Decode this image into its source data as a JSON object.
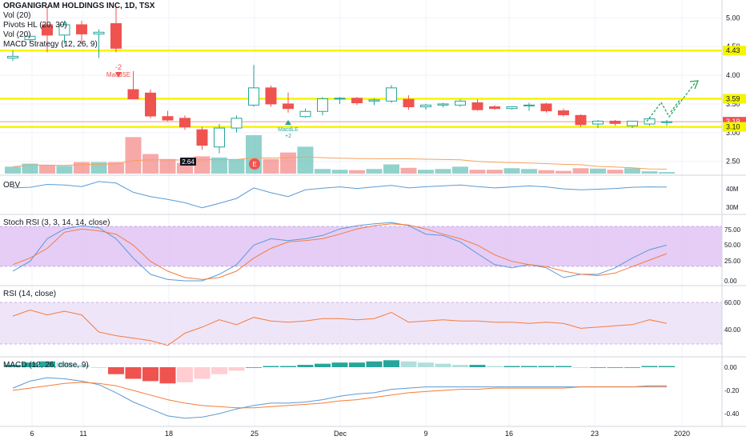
{
  "header": {
    "title": "ORGANIGRAM HOLDINGS INC, 1D, TSX",
    "overlays": [
      "Vol (20)",
      "Pivots HL (20, 30)",
      "Vol (20)",
      "MACD Strategy (12, 26, 9)"
    ]
  },
  "colors": {
    "up": "#26a69a",
    "down": "#ef5350",
    "grid": "#f0f3fa",
    "line_blue": "#5b9bd5",
    "line_orange": "#f57c3a",
    "yellow": "#f5f500",
    "band_purple": "#e1c4f5",
    "rsi_band": "#ede2f8",
    "arrow_green": "#26a65b",
    "hist_dark_green": "#26a69a",
    "hist_light_green": "#b2dfdb",
    "hist_dark_red": "#ef5350",
    "hist_light_red": "#ffcdd2"
  },
  "panes": {
    "obv": {
      "label": "OBV",
      "ticks": [
        "40M",
        "30M"
      ]
    },
    "stoch": {
      "label": "Stoch RSI (3, 3, 14, 14, close)",
      "ticks": [
        "75.00",
        "50.00",
        "25.00",
        "0.00"
      ]
    },
    "rsi": {
      "label": "RSI (14, close)",
      "ticks": [
        "60.00",
        "40.00"
      ]
    },
    "macd": {
      "label": "MACD (12, 26, close, 9)",
      "ticks": [
        "0.00",
        "-0.20",
        "-0.40"
      ]
    }
  },
  "price_axis": {
    "ticks": [
      "5.00",
      "4.50",
      "4.00",
      "3.50",
      "3.00",
      "2.50"
    ],
    "tags": [
      {
        "label": "4.43",
        "kind": "level"
      },
      {
        "label": "3.59",
        "kind": "level"
      },
      {
        "label": "3.19",
        "kind": "current"
      },
      {
        "label": "3.10",
        "kind": "level"
      }
    ]
  },
  "time_axis": [
    "6",
    "11",
    "18",
    "25",
    "Dec",
    "9",
    "16",
    "23",
    "2020"
  ],
  "annotations": {
    "sell": {
      "count": "-2",
      "name": "MacdSE"
    },
    "buy": {
      "name": "MacdLE",
      "count": "+2"
    },
    "low_label": "2.64",
    "earnings": "E"
  },
  "chart_data": {
    "type": "candlestick",
    "title": "ORGANIGRAM HOLDINGS INC, 1D, TSX",
    "y_range": [
      2.3,
      5.2
    ],
    "horizontal_levels": [
      4.43,
      3.59,
      3.1
    ],
    "last_price": 3.19,
    "candles": [
      {
        "o": 4.3,
        "h": 4.43,
        "l": 4.25,
        "c": 4.33
      },
      {
        "o": 4.62,
        "h": 4.7,
        "l": 4.55,
        "c": 4.68
      },
      {
        "o": 4.88,
        "h": 5.2,
        "l": 4.4,
        "c": 4.7
      },
      {
        "o": 4.7,
        "h": 4.95,
        "l": 4.55,
        "c": 4.88
      },
      {
        "o": 4.88,
        "h": 4.95,
        "l": 4.55,
        "c": 4.72
      },
      {
        "o": 4.72,
        "h": 4.8,
        "l": 4.3,
        "c": 4.75
      },
      {
        "o": 4.9,
        "h": 5.2,
        "l": 4.4,
        "c": 4.47
      },
      {
        "o": 3.75,
        "h": 4.07,
        "l": 3.59,
        "c": 3.59
      },
      {
        "o": 3.69,
        "h": 3.75,
        "l": 3.25,
        "c": 3.29
      },
      {
        "o": 3.28,
        "h": 3.38,
        "l": 3.2,
        "c": 3.22
      },
      {
        "o": 3.25,
        "h": 3.3,
        "l": 3.05,
        "c": 3.1
      },
      {
        "o": 3.05,
        "h": 3.1,
        "l": 2.7,
        "c": 2.78
      },
      {
        "o": 2.75,
        "h": 3.15,
        "l": 2.64,
        "c": 3.08
      },
      {
        "o": 3.08,
        "h": 3.3,
        "l": 3.0,
        "c": 3.25
      },
      {
        "o": 3.48,
        "h": 4.18,
        "l": 3.45,
        "c": 3.78
      },
      {
        "o": 3.78,
        "h": 3.82,
        "l": 3.45,
        "c": 3.5
      },
      {
        "o": 3.5,
        "h": 3.7,
        "l": 3.35,
        "c": 3.42
      },
      {
        "o": 3.28,
        "h": 3.42,
        "l": 3.26,
        "c": 3.37
      },
      {
        "o": 3.37,
        "h": 3.62,
        "l": 3.3,
        "c": 3.59
      },
      {
        "o": 3.59,
        "h": 3.62,
        "l": 3.5,
        "c": 3.6
      },
      {
        "o": 3.6,
        "h": 3.62,
        "l": 3.48,
        "c": 3.52
      },
      {
        "o": 3.55,
        "h": 3.6,
        "l": 3.48,
        "c": 3.57
      },
      {
        "o": 3.55,
        "h": 3.83,
        "l": 3.52,
        "c": 3.78
      },
      {
        "o": 3.58,
        "h": 3.65,
        "l": 3.4,
        "c": 3.45
      },
      {
        "o": 3.45,
        "h": 3.5,
        "l": 3.4,
        "c": 3.48
      },
      {
        "o": 3.48,
        "h": 3.52,
        "l": 3.44,
        "c": 3.5
      },
      {
        "o": 3.48,
        "h": 3.58,
        "l": 3.45,
        "c": 3.55
      },
      {
        "o": 3.52,
        "h": 3.58,
        "l": 3.38,
        "c": 3.4
      },
      {
        "o": 3.45,
        "h": 3.48,
        "l": 3.4,
        "c": 3.42
      },
      {
        "o": 3.42,
        "h": 3.46,
        "l": 3.4,
        "c": 3.45
      },
      {
        "o": 3.48,
        "h": 3.52,
        "l": 3.38,
        "c": 3.48
      },
      {
        "o": 3.5,
        "h": 3.52,
        "l": 3.35,
        "c": 3.38
      },
      {
        "o": 3.38,
        "h": 3.42,
        "l": 3.28,
        "c": 3.31
      },
      {
        "o": 3.3,
        "h": 3.32,
        "l": 3.1,
        "c": 3.14
      },
      {
        "o": 3.15,
        "h": 3.22,
        "l": 3.08,
        "c": 3.2
      },
      {
        "o": 3.2,
        "h": 3.22,
        "l": 3.12,
        "c": 3.16
      },
      {
        "o": 3.12,
        "h": 3.2,
        "l": 3.08,
        "c": 3.2
      },
      {
        "o": 3.15,
        "h": 3.27,
        "l": 3.12,
        "c": 3.24
      },
      {
        "o": 3.19,
        "h": 3.22,
        "l": 3.12,
        "c": 3.19
      }
    ],
    "volume": [
      0.18,
      0.26,
      0.22,
      0.2,
      0.3,
      0.3,
      0.3,
      0.95,
      0.51,
      0.38,
      0.28,
      0.45,
      0.42,
      0.38,
      1.0,
      0.38,
      0.55,
      0.7,
      0.12,
      0.1,
      0.09,
      0.12,
      0.24,
      0.15,
      0.1,
      0.12,
      0.18,
      0.1,
      0.1,
      0.14,
      0.12,
      0.09,
      0.07,
      0.14,
      0.13,
      0.1,
      0.14,
      0.06,
      0.04
    ],
    "obv": [
      40.5,
      40.8,
      42.3,
      42.0,
      41.2,
      43.8,
      43.0,
      38.2,
      36.0,
      34.5,
      32.8,
      30.2,
      32.5,
      35.0,
      40.5,
      38.0,
      36.0,
      39.5,
      40.3,
      41.0,
      40.2,
      41.0,
      41.8,
      40.5,
      41.1,
      41.5,
      42.0,
      41.2,
      40.5,
      41.0,
      41.5,
      41.0,
      40.0,
      39.5,
      39.8,
      40.2,
      40.8,
      41.0,
      40.9
    ],
    "stoch_k": [
      15,
      30,
      65,
      80,
      85,
      82,
      65,
      35,
      10,
      2,
      0,
      0,
      10,
      25,
      55,
      65,
      62,
      65,
      70,
      80,
      85,
      88,
      90,
      85,
      72,
      70,
      60,
      42,
      25,
      20,
      25,
      20,
      5,
      10,
      10,
      20,
      35,
      48,
      55
    ],
    "stoch_d": [
      25,
      35,
      50,
      75,
      80,
      77,
      72,
      55,
      30,
      15,
      5,
      2,
      5,
      15,
      35,
      50,
      60,
      62,
      65,
      72,
      80,
      85,
      88,
      86,
      80,
      72,
      65,
      55,
      40,
      30,
      25,
      22,
      15,
      10,
      8,
      12,
      22,
      32,
      42
    ],
    "rsi": [
      47,
      52,
      48,
      51,
      48,
      34,
      31,
      29,
      27,
      23,
      33,
      38,
      44,
      40,
      46,
      43,
      42,
      43,
      45,
      45,
      44,
      45,
      50,
      42,
      43,
      44,
      43,
      43,
      42,
      42,
      41,
      42,
      41,
      37,
      38,
      39,
      40,
      44,
      41
    ],
    "macd": [
      -0.18,
      -0.12,
      -0.09,
      -0.1,
      -0.12,
      -0.15,
      -0.22,
      -0.3,
      -0.36,
      -0.42,
      -0.44,
      -0.43,
      -0.4,
      -0.36,
      -0.33,
      -0.31,
      -0.31,
      -0.3,
      -0.28,
      -0.25,
      -0.23,
      -0.22,
      -0.19,
      -0.18,
      -0.17,
      -0.17,
      -0.17,
      -0.17,
      -0.17,
      -0.17,
      -0.17,
      -0.17,
      -0.17,
      -0.17,
      -0.17,
      -0.17,
      -0.17,
      -0.16,
      -0.16
    ],
    "macd_signal": [
      -0.2,
      -0.18,
      -0.16,
      -0.14,
      -0.13,
      -0.14,
      -0.16,
      -0.2,
      -0.24,
      -0.28,
      -0.31,
      -0.33,
      -0.34,
      -0.35,
      -0.35,
      -0.34,
      -0.33,
      -0.32,
      -0.31,
      -0.29,
      -0.28,
      -0.26,
      -0.24,
      -0.22,
      -0.21,
      -0.2,
      -0.19,
      -0.19,
      -0.18,
      -0.18,
      -0.18,
      -0.18,
      -0.18,
      -0.17,
      -0.17,
      -0.17,
      -0.17,
      -0.17,
      -0.17
    ],
    "macd_hist": [
      0.02,
      0.04,
      0.05,
      0.04,
      0.02,
      0.0,
      -0.06,
      -0.1,
      -0.12,
      -0.14,
      -0.13,
      -0.1,
      -0.06,
      -0.03,
      0.0,
      0.01,
      0.01,
      0.02,
      0.03,
      0.04,
      0.04,
      0.05,
      0.06,
      0.05,
      0.04,
      0.03,
      0.02,
      0.02,
      0.01,
      0.01,
      0.01,
      0.01,
      0.01,
      0.0,
      0.0,
      0.0,
      0.0,
      0.01,
      0.01
    ]
  }
}
